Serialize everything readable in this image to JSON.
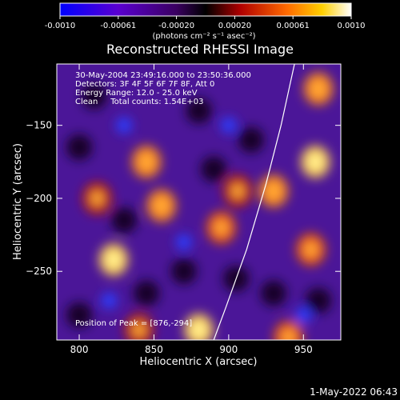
{
  "colorbar": {
    "ticks": [
      "-0.0010",
      "-0.00061",
      "-0.00020",
      "0.00020",
      "0.00061",
      "0.0010"
    ],
    "unit_label": "(photons cm⁻² s⁻¹ asec⁻²)"
  },
  "info": {
    "line1": "30-May-2004 23:49:16.000 to 23:50:36.000",
    "line2": "Detectors: 3F 4F 5F 6F 7F 8F, Att 0",
    "line3": "Energy Range: 12.0 - 25.0 keV",
    "line4": "Clean     Total counts: 1.54E+03",
    "peak": "Position of Peak = [876,-294]"
  },
  "footer": {
    "date": "1-May-2022 06:43"
  },
  "chart_data": {
    "type": "heatmap",
    "title": "Reconstructed RHESSI Image",
    "xlabel": "Heliocentric X (arcsec)",
    "ylabel": "Heliocentric Y (arcsec)",
    "xlim": [
      785,
      975
    ],
    "ylim": [
      -297,
      -108
    ],
    "x_ticks": [
      800,
      850,
      900,
      950
    ],
    "y_ticks": [
      -150,
      -200,
      -250
    ],
    "x_tick_labels": [
      "800",
      "850",
      "900",
      "950"
    ],
    "y_tick_labels": [
      "−150",
      "−200",
      "−250"
    ],
    "color_scale": {
      "min": -0.001,
      "max": 0.001,
      "palette": [
        "#0000ff",
        "#7a00c8",
        "#000000",
        "#c80000",
        "#ff7800",
        "#ffff00",
        "#ffffff"
      ]
    },
    "peak": [
      876,
      -294
    ],
    "limb_curve": [
      [
        944,
        -108
      ],
      [
        935,
        -150
      ],
      [
        925,
        -190
      ],
      [
        912,
        -235
      ],
      [
        898,
        -275
      ],
      [
        890,
        -297
      ]
    ],
    "bright_spots": [
      {
        "x": 960,
        "y": -125,
        "value": 0.0008
      },
      {
        "x": 958,
        "y": -175,
        "value": 0.0009
      },
      {
        "x": 930,
        "y": -195,
        "value": 0.0007
      },
      {
        "x": 955,
        "y": -235,
        "value": 0.0006
      },
      {
        "x": 845,
        "y": -175,
        "value": 0.0007
      },
      {
        "x": 855,
        "y": -205,
        "value": 0.0007
      },
      {
        "x": 823,
        "y": -242,
        "value": 0.0009
      },
      {
        "x": 895,
        "y": -220,
        "value": 0.0006
      },
      {
        "x": 812,
        "y": -200,
        "value": 0.0005
      },
      {
        "x": 940,
        "y": -295,
        "value": 0.0006
      },
      {
        "x": 880,
        "y": -290,
        "value": 0.001
      },
      {
        "x": 906,
        "y": -195,
        "value": 0.0005
      },
      {
        "x": 840,
        "y": -290,
        "value": 0.0004
      }
    ]
  }
}
